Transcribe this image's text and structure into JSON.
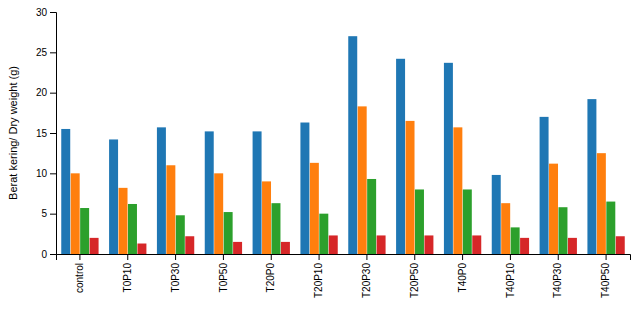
{
  "chart_data": {
    "type": "bar",
    "categories": [
      "control",
      "T0P10",
      "T0P30",
      "T0P50",
      "T20P0",
      "T20P10",
      "T20P30",
      "T20P50",
      "T40P0",
      "T40P10",
      "T40P30",
      "T40P50"
    ],
    "series": [
      {
        "values": [
          15.5,
          14.2,
          15.7,
          15.2,
          15.2,
          16.3,
          27.0,
          24.2,
          23.7,
          9.8,
          17.0,
          19.2
        ]
      },
      {
        "values": [
          10.0,
          8.2,
          11.0,
          10.0,
          9.0,
          11.3,
          18.3,
          16.5,
          15.7,
          6.3,
          11.2,
          12.5
        ]
      },
      {
        "values": [
          5.7,
          6.2,
          4.8,
          5.2,
          6.3,
          5.0,
          9.3,
          8.0,
          8.0,
          3.3,
          5.8,
          6.5
        ]
      },
      {
        "values": [
          2.0,
          1.3,
          2.2,
          1.5,
          1.5,
          2.3,
          2.3,
          2.3,
          2.3,
          2.0,
          2.0,
          2.2
        ]
      }
    ],
    "ylabel": "Berat kering/ Dry weight (g)",
    "ylim": [
      0,
      30
    ],
    "yticks": [
      0,
      5,
      10,
      15,
      20,
      25,
      30
    ],
    "grid": false
  }
}
